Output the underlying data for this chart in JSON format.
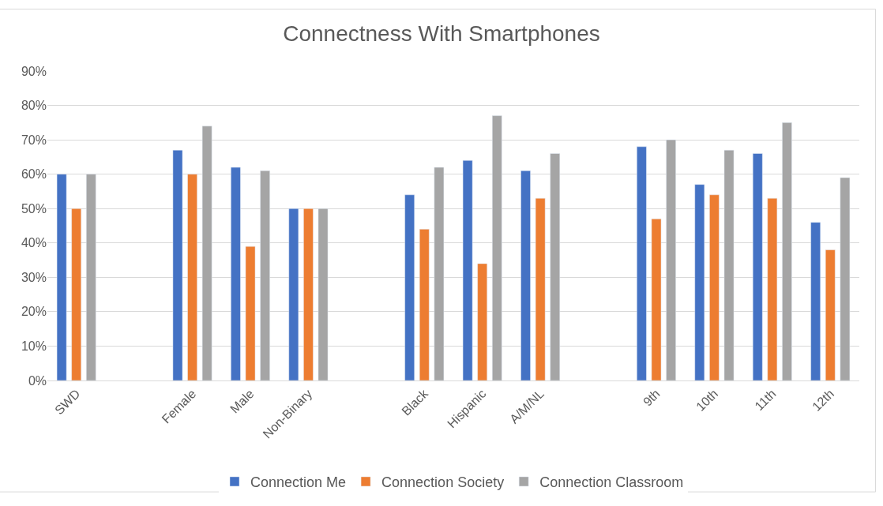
{
  "chart_data": {
    "type": "bar",
    "title": "Connectness With Smartphones",
    "categories": [
      "SWD",
      null,
      "Female",
      "Male",
      "Non-Binary",
      null,
      "Black",
      "Hispanic",
      "A/M/NL",
      null,
      "9th",
      "10th",
      "11th",
      "12th"
    ],
    "series": [
      {
        "name": "Connection Me",
        "color": "#4472c4",
        "values": [
          60,
          null,
          67,
          62,
          50,
          null,
          54,
          64,
          61,
          null,
          68,
          57,
          66,
          46
        ]
      },
      {
        "name": "Connection Society",
        "color": "#ed7d31",
        "values": [
          50,
          null,
          60,
          39,
          50,
          null,
          44,
          34,
          53,
          null,
          47,
          54,
          53,
          38
        ]
      },
      {
        "name": "Connection Classroom",
        "color": "#a5a5a5",
        "values": [
          60,
          null,
          74,
          61,
          50,
          null,
          62,
          77,
          66,
          null,
          70,
          67,
          75,
          59
        ]
      }
    ],
    "ylim": [
      0,
      90
    ],
    "yticks": [
      {
        "value": 0,
        "label": "0%"
      },
      {
        "value": 10,
        "label": "10%"
      },
      {
        "value": 20,
        "label": "20%"
      },
      {
        "value": 30,
        "label": "30%"
      },
      {
        "value": 40,
        "label": "40%"
      },
      {
        "value": 50,
        "label": "50%"
      },
      {
        "value": 60,
        "label": "60%"
      },
      {
        "value": 70,
        "label": "70%"
      },
      {
        "value": 80,
        "label": "80%"
      },
      {
        "value": 90,
        "label": "90%"
      }
    ],
    "grid": "y",
    "legend": "bottom"
  }
}
